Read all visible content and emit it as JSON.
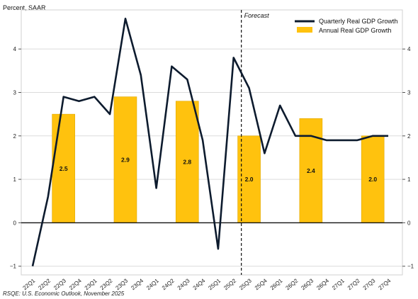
{
  "chart_data": {
    "type": "bar+line",
    "ylabel": "Percent, SAAR",
    "ylim": [
      -1.2,
      4.9
    ],
    "yticks": [
      -1,
      0,
      1,
      2,
      3,
      4
    ],
    "grid": true,
    "legend_position": "top-right",
    "forecast_label": "Forecast",
    "forecast_start_after": "25Q2",
    "source": "RSQE: U.S. Economic Outlook, November 2025",
    "categories": [
      "22Q1",
      "22Q2",
      "22Q3",
      "22Q4",
      "23Q1",
      "23Q2",
      "23Q3",
      "23Q4",
      "24Q1",
      "24Q2",
      "24Q3",
      "24Q4",
      "25Q1",
      "25Q2",
      "25Q3",
      "25Q4",
      "26Q1",
      "26Q2",
      "26Q3",
      "26Q4",
      "27Q1",
      "27Q2",
      "27Q3",
      "27Q4"
    ],
    "series": [
      {
        "name": "Quarterly Real GDP Growth",
        "type": "line",
        "color": "#0d1b2e",
        "values": [
          -1.0,
          0.6,
          2.9,
          2.8,
          2.9,
          2.5,
          4.7,
          3.4,
          0.8,
          3.6,
          3.3,
          1.9,
          -0.6,
          3.8,
          3.1,
          1.6,
          2.7,
          2.0,
          2.0,
          1.9,
          1.9,
          1.9,
          2.0,
          2.0
        ]
      },
      {
        "name": "Annual Real GDP Growth",
        "type": "bar",
        "color": "#ffc20e",
        "bars": [
          {
            "year": "2022",
            "center": "22Q3",
            "value": 2.5,
            "label": "2.5"
          },
          {
            "year": "2023",
            "center": "23Q3",
            "value": 2.9,
            "label": "2.9"
          },
          {
            "year": "2024",
            "center": "24Q3",
            "value": 2.8,
            "label": "2.8"
          },
          {
            "year": "2025",
            "center": "25Q3",
            "value": 2.0,
            "label": "2.0"
          },
          {
            "year": "2026",
            "center": "26Q3",
            "value": 2.4,
            "label": "2.4"
          },
          {
            "year": "2027",
            "center": "27Q3",
            "value": 2.0,
            "label": "2.0"
          }
        ]
      }
    ]
  }
}
